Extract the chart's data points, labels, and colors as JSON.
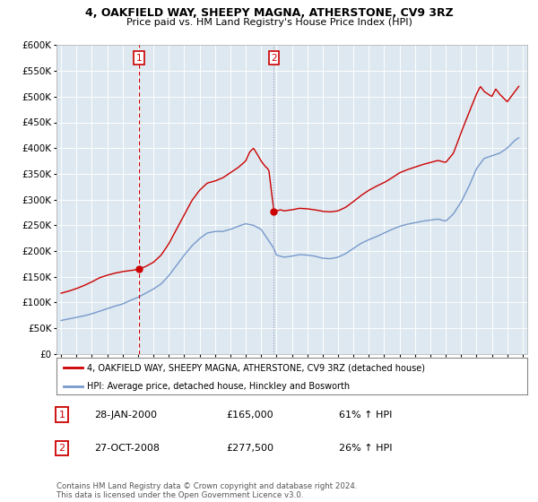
{
  "title": "4, OAKFIELD WAY, SHEEPY MAGNA, ATHERSTONE, CV9 3RZ",
  "subtitle": "Price paid vs. HM Land Registry's House Price Index (HPI)",
  "legend_line1": "4, OAKFIELD WAY, SHEEPY MAGNA, ATHERSTONE, CV9 3RZ (detached house)",
  "legend_line2": "HPI: Average price, detached house, Hinckley and Bosworth",
  "marker1_date": "28-JAN-2000",
  "marker1_price": 165000,
  "marker1_hpi": "61% ↑ HPI",
  "marker2_date": "27-OCT-2008",
  "marker2_price": 277500,
  "marker2_hpi": "26% ↑ HPI",
  "copyright": "Contains HM Land Registry data © Crown copyright and database right 2024.\nThis data is licensed under the Open Government Licence v3.0.",
  "sale_color": "#cc0000",
  "hpi_color": "#7799cc",
  "marker1_vline_color": "#cc0000",
  "marker2_vline_color": "#9999bb",
  "background_color": "#ffffff",
  "plot_bg_color": "#dde8f0",
  "grid_color": "#ffffff",
  "yticks": [
    0,
    50000,
    100000,
    150000,
    200000,
    250000,
    300000,
    350000,
    400000,
    450000,
    500000,
    550000,
    600000
  ],
  "xlim_start": 1994.7,
  "xlim_end": 2025.3,
  "ylim_max": 600000
}
